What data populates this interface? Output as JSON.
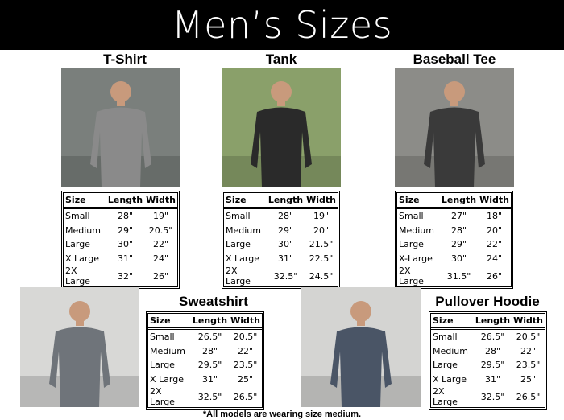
{
  "title": "Men’s Sizes",
  "columns": [
    "Size",
    "Length",
    "Width"
  ],
  "products": [
    {
      "name": "T-Shirt",
      "shirt_color": "#8a8a8a",
      "bg": "#7a7f7c",
      "rows": [
        [
          "Small",
          "28\"",
          "19\""
        ],
        [
          "Medium",
          "29\"",
          "20.5\""
        ],
        [
          "Large",
          "30\"",
          "22\""
        ],
        [
          "X Large",
          "31\"",
          "24\""
        ],
        [
          "2X Large",
          "32\"",
          "26\""
        ]
      ]
    },
    {
      "name": "Tank",
      "shirt_color": "#2a2a2a",
      "bg": "#8aa06a",
      "rows": [
        [
          "Small",
          "28\"",
          "19\""
        ],
        [
          "Medium",
          "29\"",
          "20\""
        ],
        [
          "Large",
          "30\"",
          "21.5\""
        ],
        [
          "X Large",
          "31\"",
          "22.5\""
        ],
        [
          "2X Large",
          "32.5\"",
          "24.5\""
        ]
      ]
    },
    {
      "name": "Baseball Tee",
      "shirt_color": "#3a3a3a",
      "bg": "#8c8c88",
      "rows": [
        [
          "Small",
          "27\"",
          "18\""
        ],
        [
          "Medium",
          "28\"",
          "20\""
        ],
        [
          "Large",
          "29\"",
          "22\""
        ],
        [
          "X-Large",
          "30\"",
          "24\""
        ],
        [
          "2X Large",
          "31.5\"",
          "26\""
        ]
      ]
    },
    {
      "name": "Sweatshirt",
      "shirt_color": "#6f747a",
      "bg": "#d8d8d6",
      "rows": [
        [
          "Small",
          "26.5\"",
          "20.5\""
        ],
        [
          "Medium",
          "28\"",
          "22\""
        ],
        [
          "Large",
          "29.5\"",
          "23.5\""
        ],
        [
          "X Large",
          "31\"",
          "25\""
        ],
        [
          "2X Large",
          "32.5\"",
          "26.5\""
        ]
      ]
    },
    {
      "name": "Pullover Hoodie",
      "shirt_color": "#4a5566",
      "bg": "#d4d4d2",
      "rows": [
        [
          "Small",
          "26.5\"",
          "20.5\""
        ],
        [
          "Medium",
          "28\"",
          "22\""
        ],
        [
          "Large",
          "29.5\"",
          "23.5\""
        ],
        [
          "X Large",
          "31\"",
          "25\""
        ],
        [
          "2X Large",
          "32.5\"",
          "26.5\""
        ]
      ]
    }
  ],
  "footnote": "*All models are wearing size medium."
}
